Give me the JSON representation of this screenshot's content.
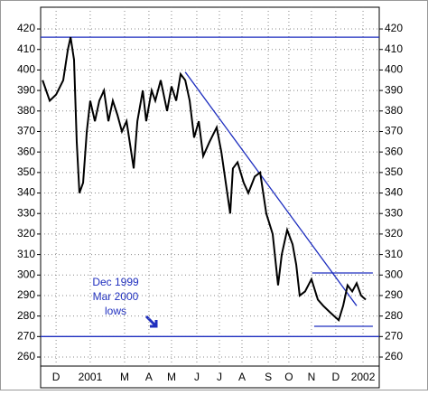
{
  "chart_data": {
    "type": "line",
    "xlim": [
      -0.26,
      13.53
    ],
    "ylim": [
      255.6,
      430.6
    ],
    "yticks": [
      260,
      270,
      280,
      290,
      300,
      310,
      320,
      330,
      340,
      350,
      360,
      370,
      380,
      390,
      400,
      410,
      420
    ],
    "xticks": [
      {
        "value": 0.37,
        "label": "D"
      },
      {
        "value": 1.76,
        "label": "2001"
      },
      {
        "value": 3.16,
        "label": "M"
      },
      {
        "value": 4.15,
        "label": "A"
      },
      {
        "value": 5.07,
        "label": "M"
      },
      {
        "value": 6.1,
        "label": "J"
      },
      {
        "value": 7.02,
        "label": "J"
      },
      {
        "value": 7.94,
        "label": "A"
      },
      {
        "value": 9.01,
        "label": "S"
      },
      {
        "value": 9.85,
        "label": "O"
      },
      {
        "value": 10.77,
        "label": "N"
      },
      {
        "value": 11.76,
        "label": "D"
      },
      {
        "value": 12.87,
        "label": "2002"
      }
    ],
    "grid": true,
    "series": [
      {
        "color": "#000000",
        "x": [
          -0.18,
          0.11,
          0.37,
          0.66,
          0.85,
          0.96,
          1.1,
          1.21,
          1.32,
          1.47,
          1.62,
          1.76,
          1.95,
          2.13,
          2.32,
          2.5,
          2.68,
          2.87,
          3.05,
          3.24,
          3.53,
          3.68,
          3.9,
          4.04,
          4.26,
          4.41,
          4.63,
          4.89,
          5.07,
          5.26,
          5.44,
          5.63,
          5.81,
          5.99,
          6.18,
          6.36,
          6.62,
          6.91,
          7.1,
          7.28,
          7.46,
          7.57,
          7.76,
          8.01,
          8.2,
          8.46,
          8.68,
          8.93,
          9.19,
          9.41,
          9.56,
          9.78,
          10.0,
          10.15,
          10.29,
          10.51,
          10.77,
          11.03,
          11.25,
          11.51,
          11.69,
          11.88,
          12.06,
          12.24,
          12.43,
          12.61,
          12.79,
          12.98
        ],
        "values": [
          395,
          385,
          388,
          395,
          410,
          416,
          405,
          365,
          340,
          345,
          370,
          385,
          375,
          385,
          390,
          375,
          385,
          378,
          370,
          375,
          352,
          375,
          390,
          375,
          390,
          385,
          395,
          380,
          392,
          385,
          398,
          395,
          385,
          367,
          375,
          358,
          365,
          372,
          360,
          345,
          330,
          352,
          355,
          345,
          340,
          348,
          350,
          330,
          320,
          295,
          310,
          322,
          315,
          305,
          290,
          292,
          298,
          288,
          285,
          282,
          280,
          278,
          285,
          295,
          292,
          296,
          290,
          288
        ]
      }
    ],
    "trend_lines": [
      {
        "color": "#1f2fbf",
        "x": [
          -0.26,
          13.53
        ],
        "values": [
          416,
          416
        ]
      },
      {
        "color": "#1f2fbf",
        "x": [
          -0.26,
          13.53
        ],
        "values": [
          270,
          270
        ]
      },
      {
        "color": "#1f2fbf",
        "x": [
          5.63,
          12.61
        ],
        "values": [
          399,
          285
        ]
      },
      {
        "color": "#1f2fbf",
        "x": [
          10.8,
          13.27
        ],
        "values": [
          301,
          301
        ]
      },
      {
        "color": "#1f2fbf",
        "x": [
          10.88,
          13.27
        ],
        "values": [
          275,
          275
        ]
      }
    ],
    "annotation": [
      "Dec 1999",
      "Mar 2000",
      "lows"
    ]
  }
}
